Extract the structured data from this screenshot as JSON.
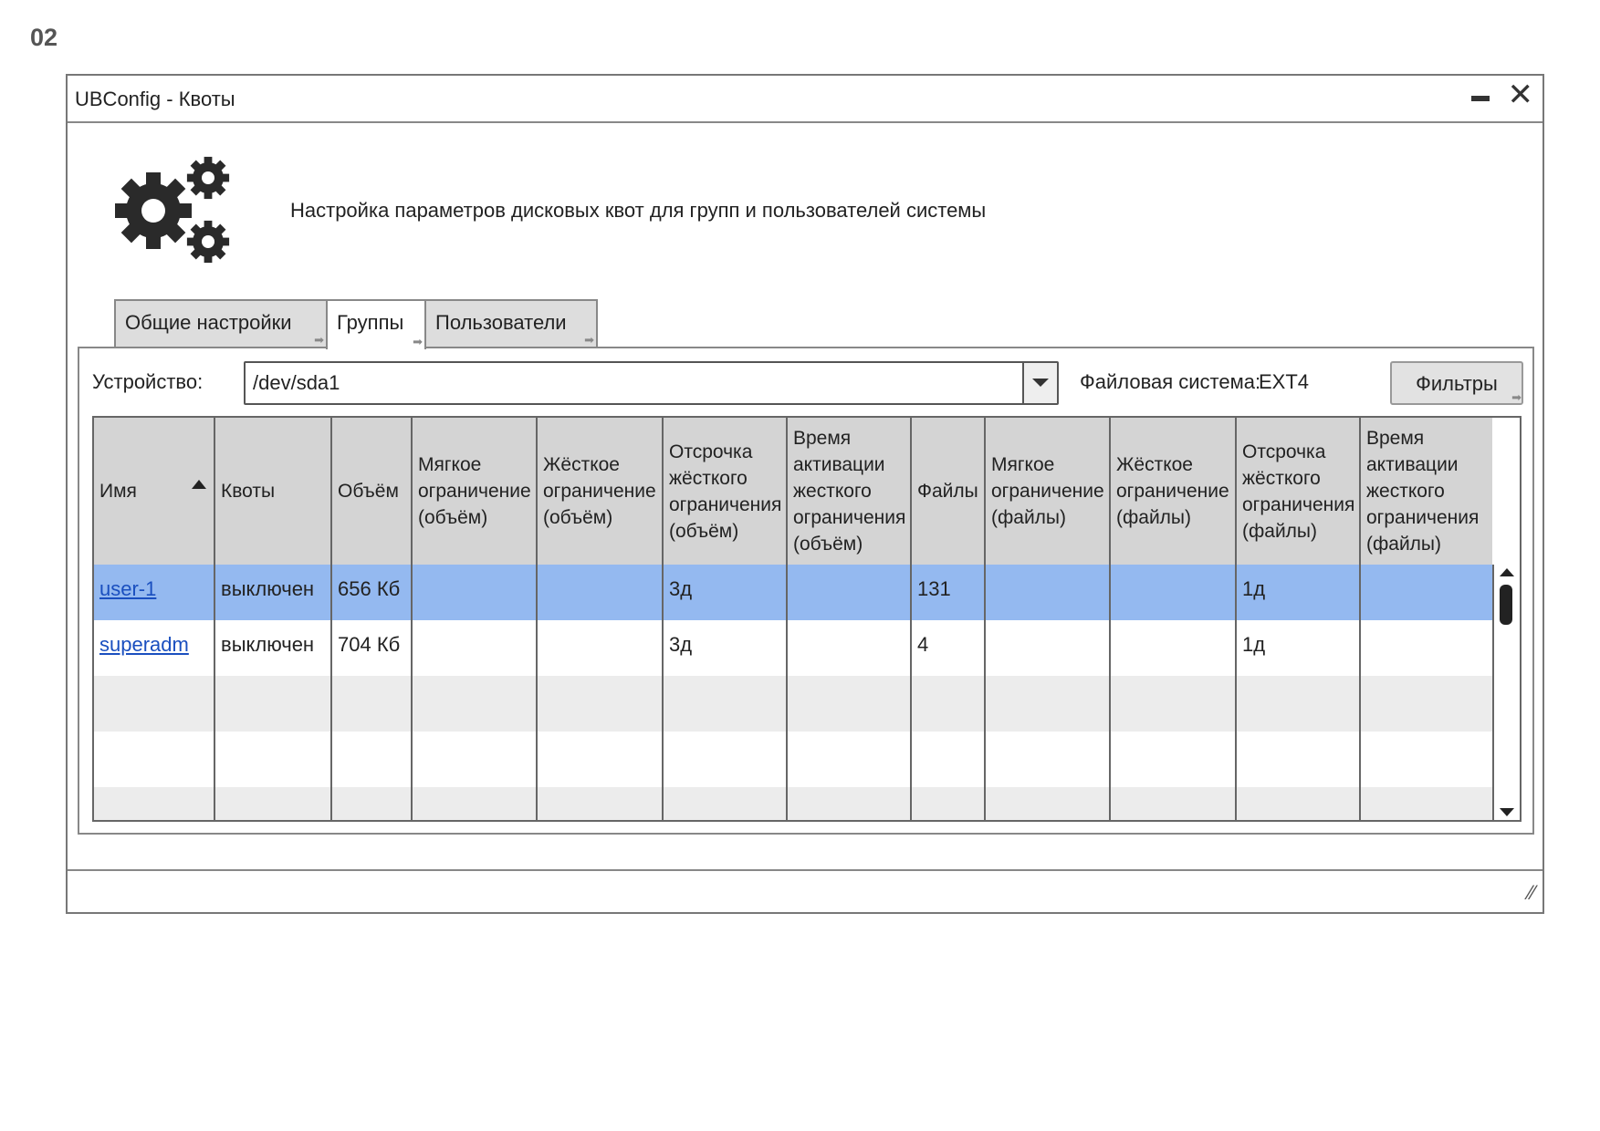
{
  "screen_label": "02",
  "window": {
    "title": "UBConfig - Квоты",
    "minimize_icon": "minimize-icon",
    "close_icon": "close-icon",
    "close_glyph": "✕"
  },
  "header": {
    "icon": "gears-icon",
    "description": "Настройка параметров дисковых квот для групп и пользователей системы"
  },
  "tabs": [
    {
      "label": "Общие настройки",
      "active": false
    },
    {
      "label": "Группы",
      "active": true
    },
    {
      "label": "Пользователи",
      "active": false
    }
  ],
  "toolbar": {
    "device_label": "Устройство:",
    "device_value": "/dev/sda1",
    "fs_label": "Файловая система:",
    "fs_value": "EXT4",
    "filters_label": "Фильтры"
  },
  "table": {
    "sort_column": "Имя",
    "sort_direction": "asc",
    "columns": [
      "Имя",
      "Квоты",
      "Объём",
      "Мягкое ограничение (объём)",
      "Жёсткое ограничение (объём)",
      "Отсрочка жёсткого ограничения (объём)",
      "Время активации жесткого ограничения (объём)",
      "Файлы",
      "Мягкое ограничение (файлы)",
      "Жёсткое ограничение (файлы)",
      "Отсрочка жёсткого ограничения (файлы)",
      "Время активации жесткого ограничения (файлы)"
    ],
    "column_display": [
      [
        "Имя"
      ],
      [
        "Квоты"
      ],
      [
        "Объём"
      ],
      [
        "Мягкое",
        "ограничени",
        "(объём)"
      ],
      [
        "Жёсткое",
        "ограничени",
        "(объём)"
      ],
      [
        "Отсрочка",
        "жёсткого",
        "ограничени",
        "(объём)"
      ],
      [
        "Время",
        "активации",
        "жесткого",
        "ограничени",
        "(объём)"
      ],
      [
        "Файлы"
      ],
      [
        "Мягкое",
        "ограничени",
        "(файлы)"
      ],
      [
        "Жёсткое",
        "ограничени",
        "(файлы)"
      ],
      [
        "Отсрочка",
        "жёсткого",
        "ограничени",
        "(файлы)"
      ],
      [
        "Время",
        "активации",
        "жесткого",
        "ограничени",
        "(файлы)"
      ]
    ],
    "rows": [
      {
        "selected": true,
        "cells": [
          "user-1",
          "выключен",
          "656 Кб",
          "",
          "",
          "3д",
          "",
          "131",
          "",
          "",
          "1д",
          ""
        ]
      },
      {
        "selected": false,
        "cells": [
          "superadm",
          "выключен",
          "704 Кб",
          "",
          "",
          "3д",
          "",
          "4",
          "",
          "",
          "1д",
          ""
        ]
      }
    ],
    "selected_color": "#94b9f0"
  }
}
